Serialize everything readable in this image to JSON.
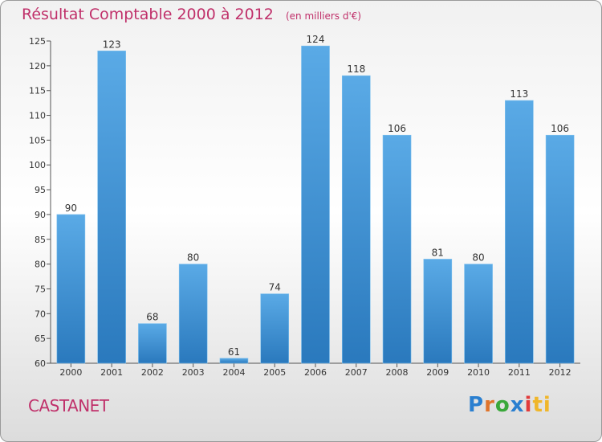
{
  "header": {
    "title": "Résultat Comptable 2000 à 2012",
    "unit": "(en milliers d'€)"
  },
  "footer": {
    "commune": "CASTANET",
    "brand": "Proxiti"
  },
  "colors": {
    "bar_light": "#5aaae6",
    "bar_dark": "#2a79bd",
    "title": "#c0306a"
  },
  "chart_data": {
    "type": "bar",
    "title": "Résultat Comptable 2000 à 2012",
    "subtitle": "(en milliers d'€)",
    "categories": [
      "2000",
      "2001",
      "2002",
      "2003",
      "2004",
      "2005",
      "2006",
      "2007",
      "2008",
      "2009",
      "2010",
      "2011",
      "2012"
    ],
    "values": [
      90,
      123,
      68,
      80,
      61,
      74,
      124,
      118,
      106,
      81,
      80,
      113,
      106
    ],
    "ylim": [
      60,
      125
    ],
    "yticks": [
      60,
      65,
      70,
      75,
      80,
      85,
      90,
      95,
      100,
      105,
      110,
      115,
      120,
      125
    ],
    "grid": false,
    "legend": "none"
  }
}
